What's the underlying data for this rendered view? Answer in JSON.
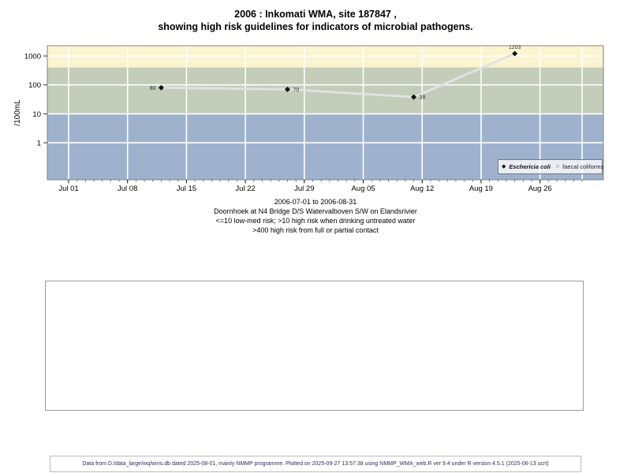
{
  "title": {
    "line1": "2006 : Inkomati WMA, site 187847 ,",
    "line2": "showing high risk guidelines for indicators of microbial pathogens."
  },
  "chart_data": {
    "type": "line",
    "title": "2006 : Inkomati WMA, site 187847 , showing high risk guidelines for indicators of microbial pathogens.",
    "ylabel": "/100mL",
    "xlabel": "",
    "y_scale": "log10",
    "y_ticks": [
      1,
      10,
      100,
      1000
    ],
    "x_range": [
      "2006-07-01",
      "2006-08-31"
    ],
    "x_total_days": 61,
    "x_minor_tick_every_days": 1,
    "x_major_ticks": [
      {
        "day": 0,
        "label": "Jul 01"
      },
      {
        "day": 7,
        "label": "Jul 08"
      },
      {
        "day": 14,
        "label": "Jul 15"
      },
      {
        "day": 21,
        "label": "Jul 22"
      },
      {
        "day": 28,
        "label": "Jul 29"
      },
      {
        "day": 35,
        "label": "Aug 05"
      },
      {
        "day": 42,
        "label": "Aug 12"
      },
      {
        "day": 49,
        "label": "Aug 19"
      },
      {
        "day": 56,
        "label": "Aug 26"
      }
    ],
    "gridline_extra_days": [
      61
    ],
    "grid": true,
    "risk_bands": [
      {
        "name": "high-risk-full-or-partial-contact",
        "threshold": ">400",
        "from": 400,
        "to": null,
        "color": "#faf5d0"
      },
      {
        "name": "high-risk-drinking-untreated",
        "threshold": ">10 to 400",
        "from": 10,
        "to": 400,
        "color": "#c3cdba"
      },
      {
        "name": "low-med-risk",
        "threshold": "<=10",
        "from": null,
        "to": 10,
        "color": "#9fb2cd"
      }
    ],
    "series": [
      {
        "name": "Eschericia coli",
        "marker": "filled-diamond",
        "line_color": "#e2e2e2",
        "marker_color": "#111111",
        "points": [
          {
            "date": "2006-07-12",
            "day": 11,
            "value": 80,
            "label": "80",
            "label_pos": "left"
          },
          {
            "date": "2006-07-27",
            "day": 26,
            "value": 70,
            "label": "70",
            "label_pos": "right"
          },
          {
            "date": "2006-08-11",
            "day": 41,
            "value": 38,
            "label": "38",
            "label_pos": "right"
          },
          {
            "date": "2006-08-23",
            "day": 53,
            "value": 1203,
            "label": "1203",
            "label_pos": "above"
          }
        ]
      },
      {
        "name": "faecal coliforms",
        "marker": "open-circle",
        "points": []
      }
    ],
    "legend": {
      "position": "bottom-right",
      "entries": [
        "Eschericia coli",
        "faecal coliforms"
      ]
    }
  },
  "legend_icons": {
    "ecoli": "◆",
    "faecal": "○"
  },
  "caption": {
    "lines": [
      "2006-07-01 to 2006-08-31",
      "Doornhoek at N4 Bridge D/S Watervalboven S/W on Elandsrivier",
      "<=10 low-med risk; >10 high risk when drinking untreated water",
      ">400 high risk from full or partial contact"
    ]
  },
  "footer": {
    "text": "Data from D:/data_large/wq/wms.db dated 2025-08-01, mainly NMMP programme. Plotted on 2025-09-27 13:57:38 using NMMP_WMA_web.R ver 9.4 under R version 4.5.1 (2025-06-13 ucrt)"
  }
}
